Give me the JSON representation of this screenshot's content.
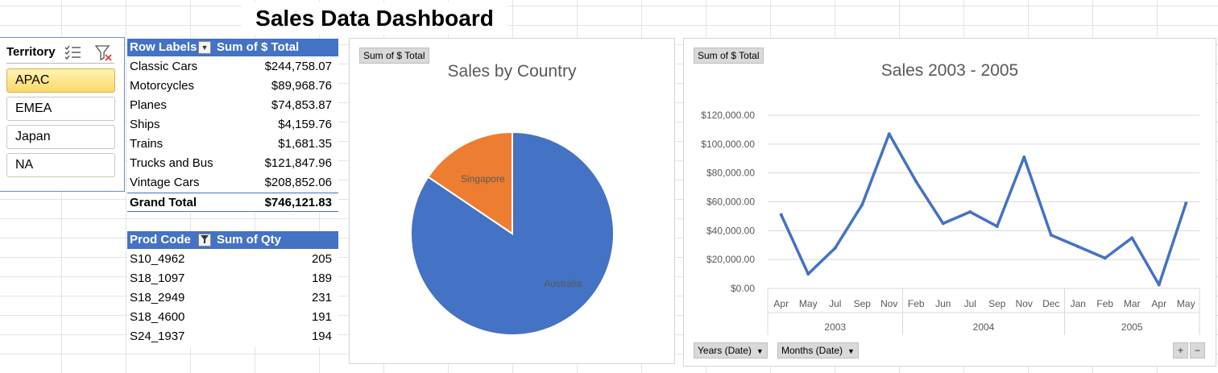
{
  "title": "Sales Data Dashboard",
  "slicer": {
    "title": "Territory",
    "items": [
      "APAC",
      "EMEA",
      "Japan",
      "NA"
    ],
    "selected": "APAC"
  },
  "pivot_sales": {
    "header_label": "Row Labels",
    "header_value": "Sum of $ Total",
    "rows": [
      {
        "label": "Classic Cars",
        "value": "$244,758.07"
      },
      {
        "label": "Motorcycles",
        "value": "$89,968.76"
      },
      {
        "label": "Planes",
        "value": "$74,853.87"
      },
      {
        "label": "Ships",
        "value": "$4,159.76"
      },
      {
        "label": "Trains",
        "value": "$1,681.35"
      },
      {
        "label": "Trucks and Buses",
        "value": "$121,847.96"
      },
      {
        "label": "Vintage Cars",
        "value": "$208,852.06"
      }
    ],
    "total_label": "Grand Total",
    "total_value": "$746,121.83"
  },
  "pivot_qty": {
    "header_label": "Prod Code",
    "header_value": "Sum of Qty",
    "rows": [
      {
        "label": "S10_4962",
        "value": "205"
      },
      {
        "label": "S18_1097",
        "value": "189"
      },
      {
        "label": "S18_2949",
        "value": "231"
      },
      {
        "label": "S18_4600",
        "value": "191"
      },
      {
        "label": "S24_1937",
        "value": "194"
      }
    ]
  },
  "pie_panel": {
    "field_button": "Sum of $ Total"
  },
  "line_panel": {
    "field_button": "Sum of $ Total",
    "years_button": "Years (Date)",
    "months_button": "Months (Date)",
    "plus": "+",
    "minus": "−"
  },
  "colors": {
    "header_blue": "#4472c4",
    "pie_blue": "#4472c4",
    "pie_orange": "#ed7d31",
    "line_blue": "#4472c4",
    "slicer_selected": "#fbd86a"
  },
  "chart_data": [
    {
      "type": "pie",
      "title": "Sales by Country",
      "categories": [
        "Australia",
        "Singapore"
      ],
      "values": [
        630000,
        116121.83
      ]
    },
    {
      "type": "line",
      "title": "Sales 2003 - 2005",
      "series": [
        {
          "values": [
            51000,
            10000,
            28000,
            58000,
            107000,
            74000,
            45000,
            53000,
            43000,
            91000,
            37000,
            29000,
            21000,
            35000,
            2500,
            59000
          ]
        }
      ],
      "categories": [
        "Apr",
        "May",
        "Jul",
        "Sep",
        "Nov",
        "Feb",
        "Jun",
        "Jul",
        "Sep",
        "Nov",
        "Dec",
        "Jan",
        "Feb",
        "Mar",
        "Apr",
        "May"
      ],
      "groups": [
        {
          "label": "2003",
          "count": 5
        },
        {
          "label": "2004",
          "count": 6
        },
        {
          "label": "2005",
          "count": 5
        }
      ],
      "ylim": [
        0,
        120000
      ],
      "yticks": [
        0,
        20000,
        40000,
        60000,
        80000,
        100000,
        120000
      ],
      "ytick_labels": [
        "$0.00",
        "$20,000.00",
        "$40,000.00",
        "$60,000.00",
        "$80,000.00",
        "$100,000.00",
        "$120,000.00"
      ],
      "grid": true
    }
  ]
}
